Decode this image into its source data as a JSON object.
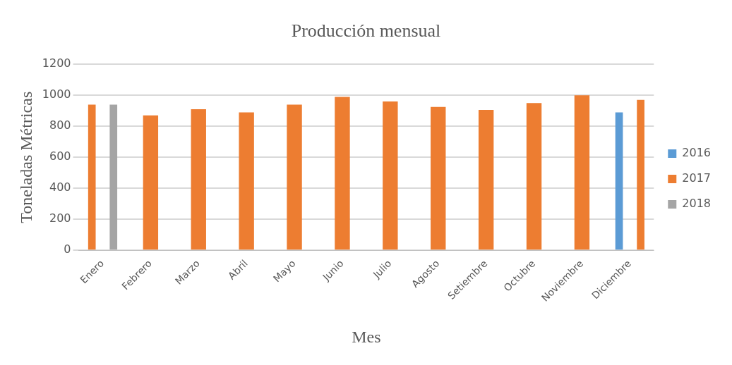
{
  "chart_data": {
    "type": "bar",
    "title": "Producción mensual",
    "xlabel": "Mes",
    "ylabel": "Toneladas Métricas",
    "categories": [
      "Enero",
      "Febrero",
      "Marzo",
      "Abril",
      "Mayo",
      "Junio",
      "Julio",
      "Agosto",
      "Setiembre",
      "Octubre",
      "Noviembre",
      "Diciembre"
    ],
    "series": [
      {
        "name": "2016",
        "color": "#5b9bd5",
        "values": [
          null,
          null,
          null,
          null,
          null,
          null,
          null,
          null,
          null,
          null,
          null,
          890
        ]
      },
      {
        "name": "2017",
        "color": "#ed7d31",
        "values": [
          940,
          870,
          910,
          890,
          940,
          990,
          960,
          925,
          905,
          950,
          1000,
          970
        ]
      },
      {
        "name": "2018",
        "color": "#a5a5a5",
        "values": [
          940,
          null,
          null,
          null,
          null,
          null,
          null,
          null,
          null,
          null,
          null,
          null
        ]
      }
    ],
    "ylim": [
      0,
      1200
    ],
    "yticks": [
      0,
      200,
      400,
      600,
      800,
      1000,
      1200
    ],
    "grid": "y",
    "legend": "right"
  }
}
